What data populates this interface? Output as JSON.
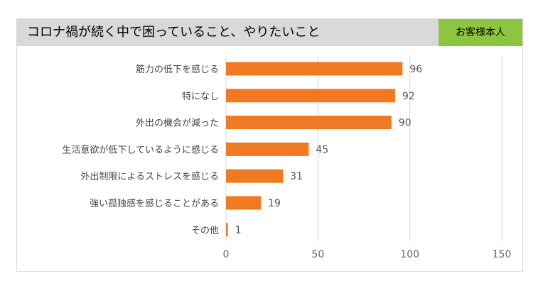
{
  "header": {
    "title": "コロナ禍が続く中で困っていること、やりたいこと",
    "badge": "お客様本人"
  },
  "colors": {
    "bar": "#f07a24",
    "header_bg": "#d9d9d9",
    "badge_bg": "#8cc63e",
    "grid": "#d9d9d9"
  },
  "chart_data": {
    "type": "bar",
    "orientation": "horizontal",
    "title": "",
    "xlabel": "",
    "ylabel": "",
    "categories": [
      "筋力の低下を感じる",
      "特になし",
      "外出の機会が減った",
      "生活意欲が低下しているように感じる",
      "外出制限によるストレスを感じる",
      "強い孤独感を感じることがある",
      "その他"
    ],
    "values": [
      96,
      92,
      90,
      45,
      31,
      19,
      1
    ],
    "xlim": [
      0,
      150
    ],
    "xticks": [
      0,
      50,
      100,
      150
    ],
    "grid": true,
    "legend": "none"
  }
}
